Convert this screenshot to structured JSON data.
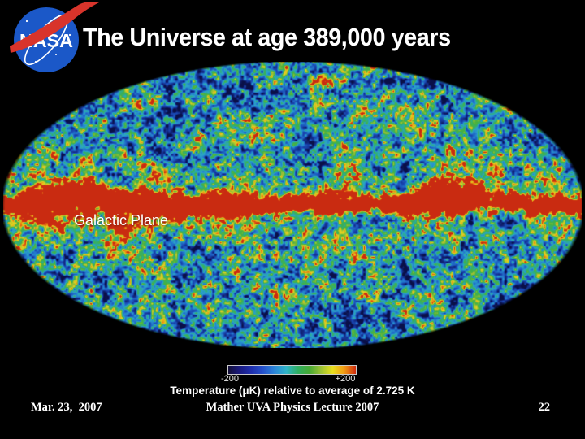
{
  "slide": {
    "title": "The Universe at age 389,000 years",
    "logo": {
      "text": "NASA",
      "blue": "#1b58c8",
      "red": "#d8342b"
    },
    "map": {
      "label": "Galactic Plane",
      "palette": [
        {
          "t": 0.0,
          "c": "#0a1048"
        },
        {
          "t": 0.12,
          "c": "#12277e"
        },
        {
          "t": 0.25,
          "c": "#1a49b4"
        },
        {
          "t": 0.38,
          "c": "#2379cd"
        },
        {
          "t": 0.48,
          "c": "#2ba5c8"
        },
        {
          "t": 0.58,
          "c": "#2fae7a"
        },
        {
          "t": 0.68,
          "c": "#46b13f"
        },
        {
          "t": 0.78,
          "c": "#97bf36"
        },
        {
          "t": 0.86,
          "c": "#e4d31f"
        },
        {
          "t": 0.93,
          "c": "#ec8c15"
        },
        {
          "t": 1.0,
          "c": "#c92b11"
        }
      ]
    },
    "colorbar": {
      "min_label": "-200",
      "max_label": "+200",
      "caption": "Temperature (μK) relative to average of 2.725 K",
      "gradient": [
        "#141038",
        "#1a1a80",
        "#1f2fae",
        "#2552cc",
        "#2b86d8",
        "#2fb4c8",
        "#2fae62",
        "#46aa34",
        "#9cc233",
        "#e8df1e",
        "#f29a12",
        "#cf2c10"
      ]
    },
    "footer": {
      "date": "Mar. 23,  2007",
      "lecture": "Mather UVA Physics Lecture 2007",
      "page_number": "22"
    }
  }
}
